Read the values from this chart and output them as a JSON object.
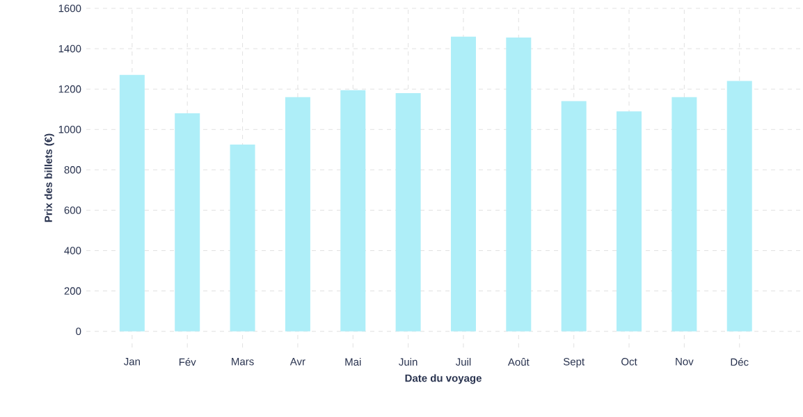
{
  "chart_data": {
    "type": "bar",
    "xlabel": "Date du voyage",
    "ylabel": "Prix des billets (€)",
    "categories": [
      "Jan",
      "Fév",
      "Mars",
      "Avr",
      "Mai",
      "Juin",
      "Juil",
      "Août",
      "Sept",
      "Oct",
      "Nov",
      "Déc"
    ],
    "values": [
      1270,
      1080,
      925,
      1160,
      1195,
      1180,
      1460,
      1455,
      1140,
      1090,
      1160,
      1240
    ],
    "color": "#aeeef8",
    "ylim": [
      0,
      1600
    ],
    "yticks": [
      0,
      200,
      400,
      600,
      800,
      1000,
      1200,
      1400,
      1600
    ],
    "grid": true
  }
}
